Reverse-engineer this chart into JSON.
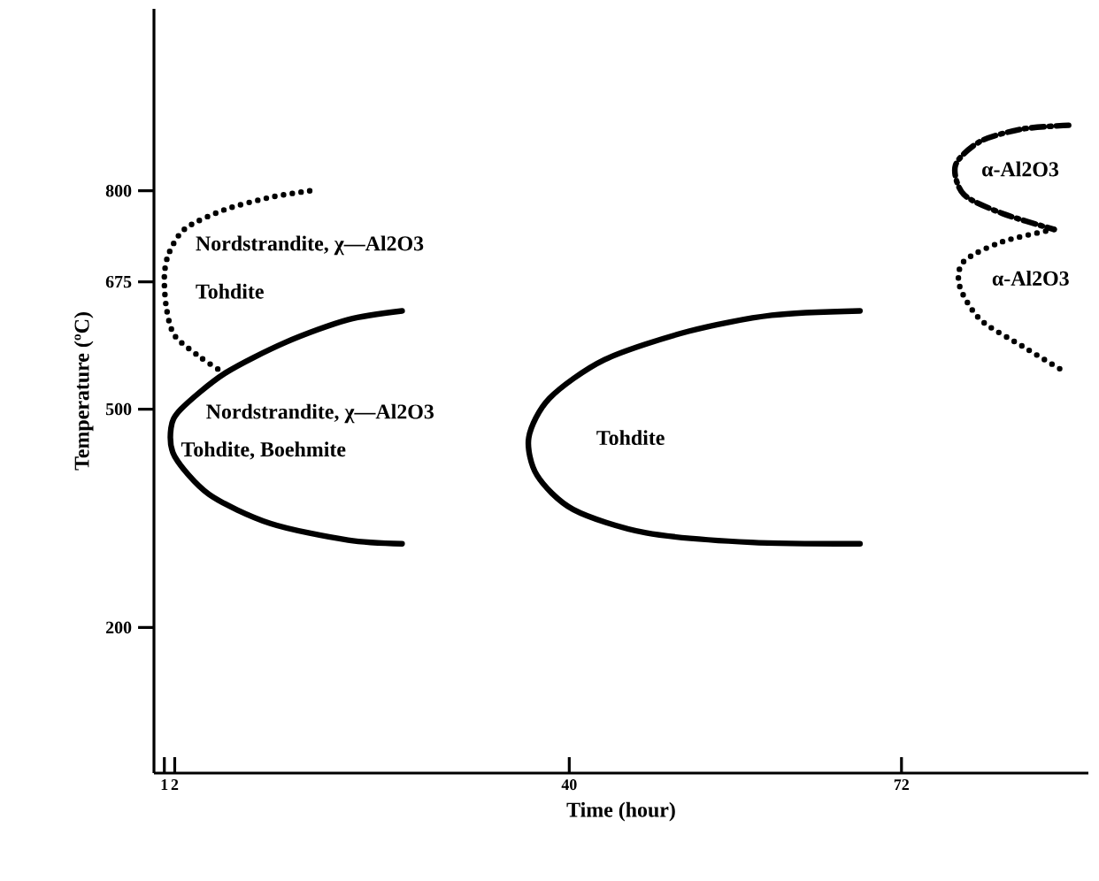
{
  "chart_data": {
    "type": "line",
    "xlabel": "Time (hour)",
    "ylabel": "Temperature (ºC)",
    "xlim": [
      0,
      90
    ],
    "ylim": [
      0,
      1050
    ],
    "xticks": [
      1,
      2,
      40,
      72
    ],
    "yticks": [
      200,
      500,
      675,
      800
    ],
    "series": [
      {
        "color": "#000000",
        "line_style": "solid",
        "x": [
          23.9,
          18.7,
          12.7,
          6.8,
          2.6,
          1.64,
          2,
          5.3,
          11.2,
          18.7,
          23.9
        ],
        "values": [
          635,
          623,
          592,
          549,
          500,
          474,
          435,
          383,
          343,
          320,
          315
        ]
      },
      {
        "color": "#000000",
        "line_style": "dotted",
        "x": [
          15.0,
          11.2,
          6.8,
          3.0,
          1.43,
          1.0,
          1.21,
          2,
          4.5,
          6.5
        ],
        "values": [
          800,
          791,
          774,
          748,
          714,
          682,
          638,
          601,
          571,
          552
        ]
      },
      {
        "color": "#000000",
        "line_style": "solid",
        "x": [
          68.0,
          59.5,
          51.5,
          43.4,
          38.1,
          36.1,
          36.9,
          40.4,
          47.4,
          57.5,
          68.0
        ],
        "values": [
          635,
          629,
          607,
          568,
          515,
          461,
          409,
          362,
          330,
          317,
          315
        ]
      },
      {
        "color": "#000000",
        "line_style": "dashed",
        "x": [
          88.1,
          83.7,
          79.6,
          77.2,
          78.0,
          81.7,
          86.7
        ],
        "values": [
          890,
          885,
          868,
          835,
          795,
          769,
          747
        ]
      },
      {
        "color": "#000000",
        "line_style": "dotted",
        "x": [
          86.7,
          81.7,
          78.0,
          77.6,
          79.6,
          83.7,
          87.3
        ],
        "values": [
          747,
          730,
          703,
          669,
          623,
          586,
          555
        ]
      }
    ],
    "annotations": [
      "Nordstrandite, χ—Al2O3",
      "Tohdite",
      "Nordstrandite, χ—Al2O3",
      "Tohdite, Boehmite",
      "Tohdite",
      "α-Al2O3",
      "α-Al2O3"
    ]
  }
}
